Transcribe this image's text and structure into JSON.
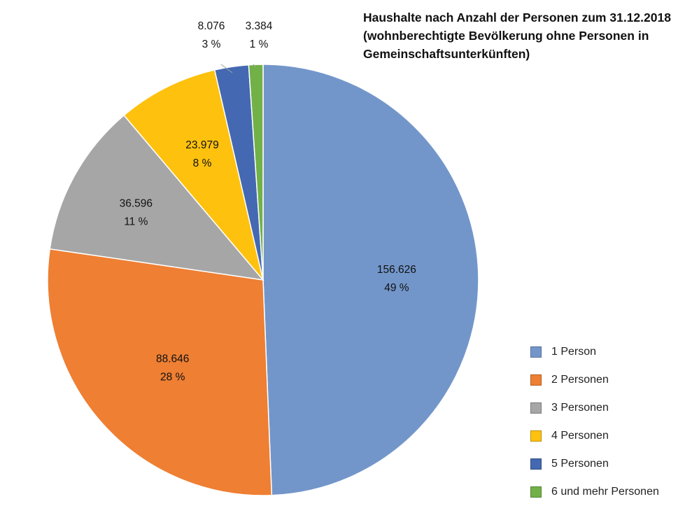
{
  "chart_data": {
    "type": "pie",
    "title_lines": [
      "Haushalte nach Anzahl der Personen zum 31.12.2018",
      "(wohnberechtigte Bevölkerung ohne Personen in",
      "Gemeinschaftsunterkünften)"
    ],
    "slices": [
      {
        "label": "1 Person",
        "value": 156626,
        "value_text": "156.626",
        "percent_text": "49 %",
        "color": "#7396CA"
      },
      {
        "label": "2 Personen",
        "value": 88646,
        "value_text": "88.646",
        "percent_text": "28 %",
        "color": "#EE7F33"
      },
      {
        "label": "3 Personen",
        "value": 36596,
        "value_text": "36.596",
        "percent_text": "11 %",
        "color": "#A6A6A6"
      },
      {
        "label": "4 Personen",
        "value": 23979,
        "value_text": "23.979",
        "percent_text": "8 %",
        "color": "#FEC10E"
      },
      {
        "label": "5 Personen",
        "value": 8076,
        "value_text": "8.076",
        "percent_text": "3 %",
        "color": "#4469B2"
      },
      {
        "label": "6 und mehr Personen",
        "value": 3384,
        "value_text": "3.384",
        "percent_text": "1 %",
        "color": "#72B148"
      }
    ],
    "legend_position": "bottom-right"
  }
}
